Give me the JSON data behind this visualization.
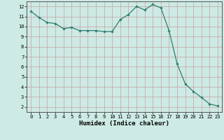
{
  "x": [
    0,
    1,
    2,
    3,
    4,
    5,
    6,
    7,
    8,
    9,
    10,
    11,
    12,
    13,
    14,
    15,
    16,
    17,
    18,
    19,
    20,
    21,
    22,
    23
  ],
  "y": [
    11.5,
    10.9,
    10.4,
    10.3,
    9.8,
    9.9,
    9.6,
    9.6,
    9.6,
    9.5,
    9.5,
    10.7,
    11.2,
    12.0,
    11.65,
    12.2,
    11.85,
    9.6,
    6.3,
    4.3,
    3.55,
    2.95,
    2.3,
    2.1
  ],
  "line_color": "#2e7d6e",
  "marker": "D",
  "marker_size": 1.8,
  "linewidth": 0.9,
  "xlabel": "Humidex (Indice chaleur)",
  "xlim": [
    -0.5,
    23.5
  ],
  "ylim": [
    1.5,
    12.5
  ],
  "yticks": [
    2,
    3,
    4,
    5,
    6,
    7,
    8,
    9,
    10,
    11,
    12
  ],
  "xticks": [
    0,
    1,
    2,
    3,
    4,
    5,
    6,
    7,
    8,
    9,
    10,
    11,
    12,
    13,
    14,
    15,
    16,
    17,
    18,
    19,
    20,
    21,
    22,
    23
  ],
  "background_color": "#cdeae5",
  "grid_color": "#b0d8d2",
  "tick_fontsize": 5.0,
  "label_fontsize": 6.5
}
